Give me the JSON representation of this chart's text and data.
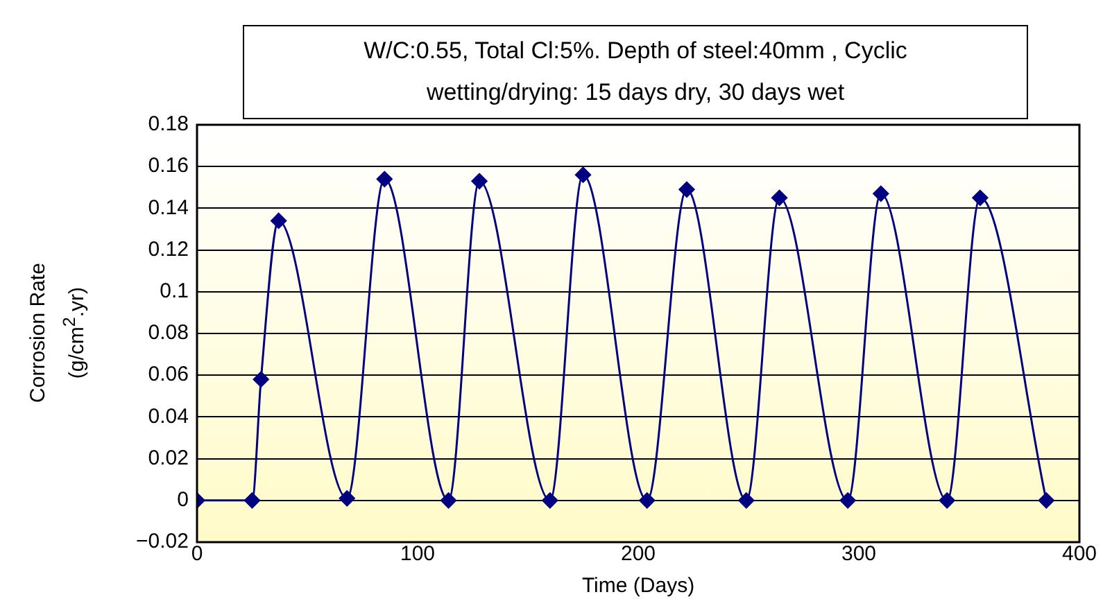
{
  "chart_data": {
    "type": "line",
    "title": "W/C:0.55, Total Cl:5%. Depth of steel:40mm , Cyclic\nwetting/drying: 15 days dry, 30 days wet",
    "xlabel": "Time (Days)",
    "ylabel": "Corrosion Rate\n(g/cm$^{2}$.yr)",
    "x": [
      0,
      25,
      29,
      37,
      68,
      85,
      114,
      128,
      160,
      175,
      204,
      222,
      249,
      264,
      295,
      310,
      340,
      355,
      385
    ],
    "series": [
      {
        "color": "#000080",
        "values": [
          0,
          0,
          0.058,
          0.134,
          0.001,
          0.154,
          0,
          0.153,
          0,
          0.156,
          0,
          0.149,
          0,
          0.145,
          0,
          0.147,
          0,
          0.145,
          0
        ]
      }
    ],
    "xlim": [
      0,
      400
    ],
    "xticks": [
      0,
      100,
      200,
      300,
      400
    ],
    "ylim": [
      -0.02,
      0.18
    ],
    "yticks": [
      -0.02,
      0,
      0.02,
      0.04,
      0.06,
      0.08,
      0.1,
      0.12,
      0.14,
      0.16,
      0.18
    ],
    "grid": "y",
    "legend": false,
    "marker": "diamond",
    "line_style": "solid"
  }
}
